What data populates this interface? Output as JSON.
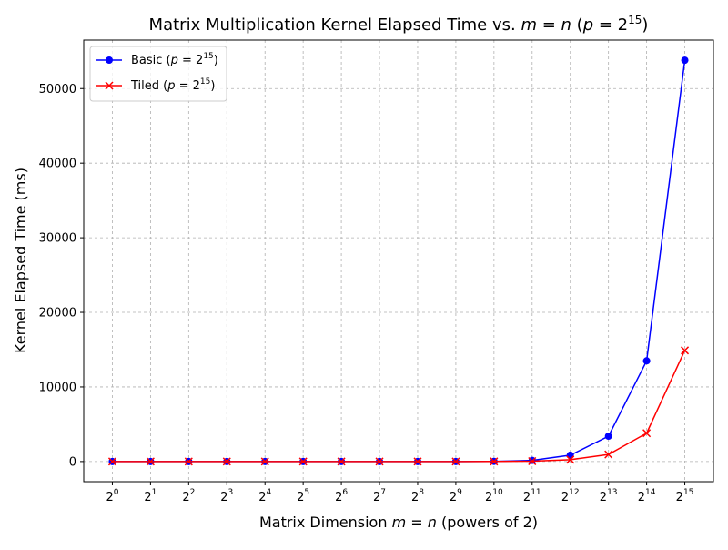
{
  "chart_data": {
    "type": "line",
    "title": "Matrix Multiplication Kernel Elapsed Time vs. m = n (p = 2^15)",
    "title_parts": {
      "prefix": "Matrix Multiplication Kernel Elapsed Time vs. ",
      "m": "m",
      "eq": " = ",
      "n": "n",
      "paren_open": " (",
      "p": "p",
      "eq2": " = 2",
      "sup": "15",
      "paren_close": ")"
    },
    "xlabel": "Matrix Dimension m = n (powers of 2)",
    "xlabel_parts": {
      "prefix": "Matrix Dimension ",
      "m": "m",
      "eq": " = ",
      "n": "n",
      "suffix": " (powers of 2)"
    },
    "ylabel": "Kernel Elapsed Time (ms)",
    "x_tick_base": "2",
    "x_exponents": [
      "0",
      "1",
      "2",
      "3",
      "4",
      "5",
      "6",
      "7",
      "8",
      "9",
      "10",
      "11",
      "12",
      "13",
      "14",
      "15"
    ],
    "y_ticks": [
      0,
      10000,
      20000,
      30000,
      40000,
      50000
    ],
    "y_tick_labels": [
      "0",
      "10000",
      "20000",
      "30000",
      "40000",
      "50000"
    ],
    "ylim": [
      -2700,
      56500
    ],
    "xlim_index": [
      -0.75,
      15.75
    ],
    "grid": true,
    "legend_position": "upper-left",
    "series": [
      {
        "name": "Basic (p = 2^15)",
        "legend_parts": {
          "prefix": "Basic (",
          "p": "p",
          "eq": " = 2",
          "sup": "15",
          "suffix": ")"
        },
        "color": "#0000ff",
        "marker": "circle",
        "values": [
          0,
          0,
          0,
          0,
          0,
          0,
          0,
          0,
          0,
          1,
          20,
          150,
          850,
          3400,
          13500,
          53800
        ]
      },
      {
        "name": "Tiled (p = 2^15)",
        "legend_parts": {
          "prefix": "Tiled (",
          "p": "p",
          "eq": " = 2",
          "sup": "15",
          "suffix": ")"
        },
        "color": "#ff0000",
        "marker": "x",
        "values": [
          0,
          0,
          0,
          0,
          0,
          0,
          0,
          0,
          0,
          1,
          10,
          50,
          250,
          950,
          3800,
          14900
        ]
      }
    ]
  }
}
